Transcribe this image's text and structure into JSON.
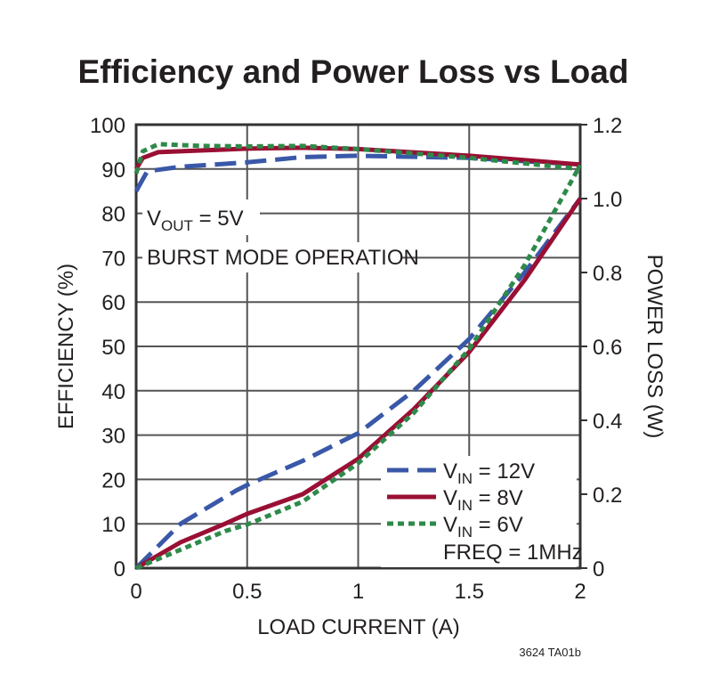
{
  "chart_data": {
    "type": "line",
    "title": "Efficiency and Power Loss vs Load",
    "xlabel": "LOAD CURRENT (A)",
    "ylabel": "EFFICIENCY (%)",
    "y2label": "POWER LOSS (W)",
    "xlim": [
      0,
      2
    ],
    "ylim": [
      0,
      100
    ],
    "y2lim": [
      0,
      1.2
    ],
    "xticks": [
      "0",
      "0.5",
      "1",
      "1.5",
      "2"
    ],
    "yticks": [
      "0",
      "10",
      "20",
      "30",
      "40",
      "50",
      "60",
      "70",
      "80",
      "90",
      "100"
    ],
    "y2ticks": [
      "0",
      "0.2",
      "0.4",
      "0.6",
      "0.8",
      "1.0",
      "1.2"
    ],
    "grid": true,
    "annotations": {
      "vout": {
        "main": "V",
        "sub": "OUT",
        "rest": " = 5V"
      },
      "mode": "BURST MODE OPERATION",
      "freq": "FREQ = 1MHz",
      "part_code": "3624 TA01b"
    },
    "legend_position": "bottom-right",
    "series": [
      {
        "name": "VIN = 12V",
        "legend_main": "V",
        "legend_sub": "IN",
        "legend_rest": " = 12V",
        "color": "#3a58a8",
        "style": "dashed",
        "efficiency": {
          "x": [
            0,
            0.05,
            0.2,
            0.5,
            0.75,
            1,
            1.5,
            2
          ],
          "y": [
            85,
            89.5,
            90.5,
            91.5,
            92.7,
            93,
            92.5,
            91
          ]
        },
        "power_loss": {
          "x": [
            0,
            0.2,
            0.45,
            0.5,
            0.75,
            1,
            1.25,
            1.5,
            1.75,
            2
          ],
          "y": [
            0,
            0.12,
            0.21,
            0.225,
            0.29,
            0.365,
            0.48,
            0.62,
            0.8,
            1.0
          ]
        }
      },
      {
        "name": "VIN = 8V",
        "legend_main": "V",
        "legend_sub": "IN",
        "legend_rest": " = 8V",
        "color": "#9a0f34",
        "style": "solid",
        "efficiency": {
          "x": [
            0,
            0.03,
            0.1,
            0.3,
            0.5,
            0.75,
            1,
            1.5,
            2
          ],
          "y": [
            90,
            92.5,
            93.8,
            94.2,
            94.6,
            94.8,
            94.5,
            93,
            91
          ]
        },
        "power_loss": {
          "x": [
            0,
            0.2,
            0.4,
            0.5,
            0.75,
            1,
            1.25,
            1.5,
            1.75,
            2
          ],
          "y": [
            0,
            0.07,
            0.12,
            0.147,
            0.2,
            0.296,
            0.43,
            0.585,
            0.78,
            1.0
          ]
        }
      },
      {
        "name": "VIN = 6V",
        "legend_main": "V",
        "legend_sub": "IN",
        "legend_rest": " = 6V",
        "color": "#2e8a4a",
        "style": "dotted",
        "efficiency": {
          "x": [
            0,
            0.03,
            0.1,
            0.3,
            0.5,
            0.75,
            1,
            1.5,
            2
          ],
          "y": [
            89,
            94,
            95.6,
            95.2,
            95.1,
            95.2,
            94.5,
            92.5,
            90
          ]
        },
        "power_loss": {
          "x": [
            0,
            0.2,
            0.4,
            0.5,
            0.75,
            1,
            1.25,
            1.5,
            1.75,
            2
          ],
          "y": [
            0,
            0.05,
            0.1,
            0.118,
            0.18,
            0.284,
            0.42,
            0.593,
            0.82,
            1.09
          ]
        }
      }
    ]
  }
}
